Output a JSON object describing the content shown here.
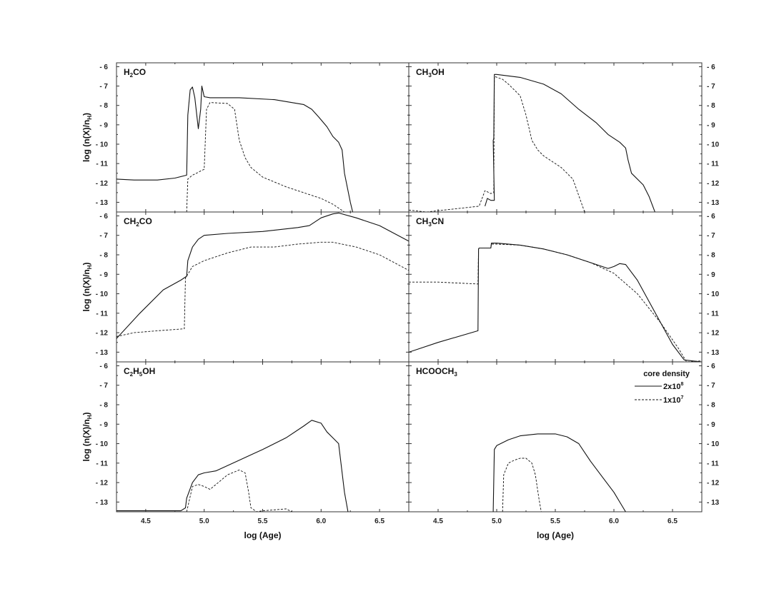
{
  "chart_data": [
    {
      "type": "line",
      "panel": "H2CO",
      "title": "H2CO",
      "xlabel": "",
      "ylabel": "log (n(X)/nH)",
      "xlim": [
        4.25,
        6.75
      ],
      "ylim": [
        -13.5,
        -5.8
      ],
      "xticks": [
        4.5,
        5.0,
        5.5,
        6.0,
        6.5
      ],
      "yticks": [
        -6,
        -7,
        -8,
        -9,
        -10,
        -11,
        -12,
        -13
      ],
      "series": [
        {
          "style": "solid",
          "x": [
            4.25,
            4.4,
            4.6,
            4.75,
            4.85,
            4.86,
            4.88,
            4.9,
            4.92,
            4.95,
            4.97,
            4.98,
            5.0,
            5.05,
            5.3,
            5.6,
            5.85,
            5.92,
            5.98,
            6.05,
            6.1,
            6.15,
            6.18,
            6.2,
            6.25,
            6.27
          ],
          "y": [
            -11.8,
            -11.85,
            -11.85,
            -11.75,
            -11.6,
            -8.5,
            -7.2,
            -7.05,
            -7.6,
            -9.2,
            -8.2,
            -7.0,
            -7.55,
            -7.6,
            -7.6,
            -7.7,
            -7.95,
            -8.2,
            -8.6,
            -9.1,
            -9.6,
            -9.9,
            -10.3,
            -11.5,
            -13.0,
            -13.5
          ]
        },
        {
          "style": "dashed",
          "x": [
            4.85,
            4.86,
            4.9,
            4.95,
            4.98,
            5.0,
            5.02,
            5.05,
            5.2,
            5.26,
            5.28,
            5.3,
            5.35,
            5.4,
            5.5,
            5.7,
            5.9,
            6.0,
            6.1,
            6.2
          ],
          "y": [
            -13.5,
            -11.8,
            -11.6,
            -11.45,
            -11.35,
            -11.3,
            -8.2,
            -7.85,
            -7.9,
            -8.2,
            -9.0,
            -9.8,
            -10.7,
            -11.2,
            -11.7,
            -12.2,
            -12.6,
            -12.8,
            -13.1,
            -13.5
          ]
        }
      ]
    },
    {
      "type": "line",
      "panel": "CH3OH",
      "title": "CH3OH",
      "xlabel": "",
      "ylabel": "",
      "xlim": [
        4.25,
        6.75
      ],
      "ylim": [
        -13.5,
        -5.8
      ],
      "xticks": [
        4.5,
        5.0,
        5.5,
        6.0,
        6.5
      ],
      "yticks": [
        -6,
        -7,
        -8,
        -9,
        -10,
        -11,
        -12,
        -13
      ],
      "series": [
        {
          "style": "solid",
          "x": [
            4.9,
            4.92,
            4.95,
            4.98,
            4.97,
            4.975,
            4.98,
            5.0,
            5.2,
            5.4,
            5.55,
            5.7,
            5.85,
            5.95,
            6.05,
            6.1,
            6.12,
            6.15,
            6.25,
            6.3,
            6.35
          ],
          "y": [
            -13.2,
            -12.8,
            -12.9,
            -12.9,
            -9.8,
            -9.7,
            -6.4,
            -6.4,
            -6.55,
            -6.9,
            -7.4,
            -8.2,
            -8.9,
            -9.5,
            -9.9,
            -10.2,
            -10.8,
            -11.5,
            -12.1,
            -12.7,
            -13.5
          ]
        },
        {
          "style": "dashed",
          "x": [
            4.25,
            4.4,
            4.85,
            4.9,
            4.95,
            4.975,
            4.98,
            5.05,
            5.1,
            5.2,
            5.25,
            5.3,
            5.35,
            5.4,
            5.55,
            5.65,
            5.75
          ],
          "y": [
            -13.4,
            -13.5,
            -13.2,
            -12.4,
            -12.55,
            -12.5,
            -6.5,
            -6.65,
            -6.9,
            -7.5,
            -8.5,
            -9.8,
            -10.3,
            -10.6,
            -11.2,
            -11.8,
            -13.5
          ]
        }
      ]
    },
    {
      "type": "line",
      "panel": "CH2CO",
      "title": "CH2CO",
      "xlabel": "",
      "ylabel": "log (n(X)/nH)",
      "xlim": [
        4.25,
        6.75
      ],
      "ylim": [
        -13.5,
        -5.8
      ],
      "xticks": [
        4.5,
        5.0,
        5.5,
        6.0,
        6.5
      ],
      "yticks": [
        -6,
        -7,
        -8,
        -9,
        -10,
        -11,
        -12,
        -13
      ],
      "series": [
        {
          "style": "solid",
          "x": [
            4.25,
            4.45,
            4.65,
            4.8,
            4.85,
            4.86,
            4.9,
            4.95,
            5.0,
            5.2,
            5.5,
            5.8,
            5.9,
            6.0,
            6.1,
            6.15,
            6.3,
            6.5,
            6.75
          ],
          "y": [
            -12.3,
            -11.0,
            -9.8,
            -9.3,
            -9.1,
            -8.3,
            -7.6,
            -7.2,
            -7.0,
            -6.9,
            -6.8,
            -6.6,
            -6.5,
            -6.1,
            -5.9,
            -5.85,
            -6.1,
            -6.5,
            -7.3
          ]
        },
        {
          "style": "dashed",
          "x": [
            4.25,
            4.4,
            4.6,
            4.83,
            4.84,
            4.86,
            4.9,
            5.0,
            5.2,
            5.4,
            5.6,
            5.8,
            6.0,
            6.1,
            6.3,
            6.5,
            6.75
          ],
          "y": [
            -12.2,
            -12.0,
            -11.9,
            -11.8,
            -9.2,
            -9.0,
            -8.6,
            -8.3,
            -7.9,
            -7.6,
            -7.6,
            -7.45,
            -7.35,
            -7.35,
            -7.6,
            -8.0,
            -8.8
          ]
        }
      ]
    },
    {
      "type": "line",
      "panel": "CH3CN",
      "title": "CH3CN",
      "xlabel": "",
      "ylabel": "",
      "xlim": [
        4.25,
        6.75
      ],
      "ylim": [
        -13.5,
        -5.8
      ],
      "xticks": [
        4.5,
        5.0,
        5.5,
        6.0,
        6.5
      ],
      "yticks": [
        -6,
        -7,
        -8,
        -9,
        -10,
        -11,
        -12,
        -13
      ],
      "series": [
        {
          "style": "solid",
          "x": [
            4.25,
            4.5,
            4.84,
            4.845,
            4.85,
            4.95,
            4.955,
            5.0,
            5.2,
            5.4,
            5.6,
            5.8,
            5.95,
            6.0,
            6.05,
            6.1,
            6.2,
            6.3,
            6.4,
            6.5,
            6.6,
            6.75
          ],
          "y": [
            -13.0,
            -12.5,
            -11.9,
            -7.7,
            -7.65,
            -7.65,
            -7.4,
            -7.4,
            -7.5,
            -7.7,
            -8.0,
            -8.4,
            -8.7,
            -8.6,
            -8.45,
            -8.5,
            -9.3,
            -10.4,
            -11.5,
            -12.6,
            -13.4,
            -13.5
          ]
        },
        {
          "style": "dashed",
          "x": [
            4.25,
            4.5,
            4.84,
            4.845,
            4.85,
            4.95,
            4.955,
            5.0,
            5.2,
            5.4,
            5.6,
            5.8,
            6.0,
            6.2,
            6.4,
            6.55,
            6.62,
            6.75
          ],
          "y": [
            -9.4,
            -9.4,
            -9.5,
            -7.7,
            -7.65,
            -7.65,
            -7.45,
            -7.45,
            -7.5,
            -7.7,
            -8.0,
            -8.4,
            -8.95,
            -10.0,
            -11.5,
            -12.8,
            -13.5,
            -13.45
          ]
        }
      ]
    },
    {
      "type": "line",
      "panel": "C2H5OH",
      "title": "C2H5OH",
      "xlabel": "log (Age)",
      "ylabel": "log (n(X)/nH)",
      "xlim": [
        4.25,
        6.75
      ],
      "ylim": [
        -13.5,
        -5.8
      ],
      "xticks": [
        4.5,
        5.0,
        5.5,
        6.0,
        6.5
      ],
      "yticks": [
        -6,
        -7,
        -8,
        -9,
        -10,
        -11,
        -12,
        -13
      ],
      "series": [
        {
          "style": "solid",
          "x": [
            4.25,
            4.6,
            4.8,
            4.84,
            4.85,
            4.9,
            4.95,
            5.0,
            5.1,
            5.3,
            5.5,
            5.7,
            5.85,
            5.92,
            6.0,
            6.05,
            6.1,
            6.15,
            6.2,
            6.23
          ],
          "y": [
            -13.45,
            -13.45,
            -13.45,
            -13.3,
            -12.8,
            -12.0,
            -11.6,
            -11.5,
            -11.4,
            -10.85,
            -10.3,
            -9.7,
            -9.1,
            -8.8,
            -8.95,
            -9.4,
            -9.7,
            -10.0,
            -12.5,
            -13.5
          ]
        },
        {
          "style": "dashed",
          "x": [
            4.85,
            4.9,
            4.95,
            5.0,
            5.05,
            5.1,
            5.2,
            5.3,
            5.35,
            5.38,
            5.4,
            5.45,
            5.5,
            5.6,
            5.7,
            5.75
          ],
          "y": [
            -13.5,
            -12.2,
            -12.1,
            -12.2,
            -12.35,
            -12.1,
            -11.6,
            -11.35,
            -11.5,
            -12.5,
            -13.3,
            -13.5,
            -13.45,
            -13.4,
            -13.35,
            -13.5
          ]
        }
      ]
    },
    {
      "type": "line",
      "panel": "HCOOCH3",
      "title": "HCOOCH3",
      "xlabel": "log (Age)",
      "ylabel": "",
      "xlim": [
        4.25,
        6.75
      ],
      "ylim": [
        -13.5,
        -5.8
      ],
      "xticks": [
        4.5,
        5.0,
        5.5,
        6.0,
        6.5
      ],
      "yticks": [
        -6,
        -7,
        -8,
        -9,
        -10,
        -11,
        -12,
        -13
      ],
      "series": [
        {
          "style": "solid",
          "x": [
            4.97,
            4.98,
            5.0,
            5.1,
            5.2,
            5.35,
            5.5,
            5.6,
            5.7,
            5.8,
            5.9,
            6.0,
            6.05,
            6.1
          ],
          "y": [
            -13.5,
            -10.3,
            -10.1,
            -9.8,
            -9.6,
            -9.5,
            -9.5,
            -9.65,
            -10.0,
            -10.9,
            -11.7,
            -12.5,
            -13.0,
            -13.5
          ]
        },
        {
          "style": "dashed",
          "x": [
            5.05,
            5.06,
            5.1,
            5.15,
            5.2,
            5.25,
            5.3,
            5.33,
            5.36,
            5.38
          ],
          "y": [
            -13.5,
            -11.6,
            -11.0,
            -10.85,
            -10.75,
            -10.75,
            -11.0,
            -11.6,
            -12.8,
            -13.5
          ]
        }
      ]
    }
  ],
  "legend": {
    "title": "core density",
    "entries": [
      {
        "style": "solid",
        "label": "2x10",
        "exp": "8"
      },
      {
        "style": "dashed",
        "label": "1x10",
        "exp": "7"
      }
    ]
  }
}
